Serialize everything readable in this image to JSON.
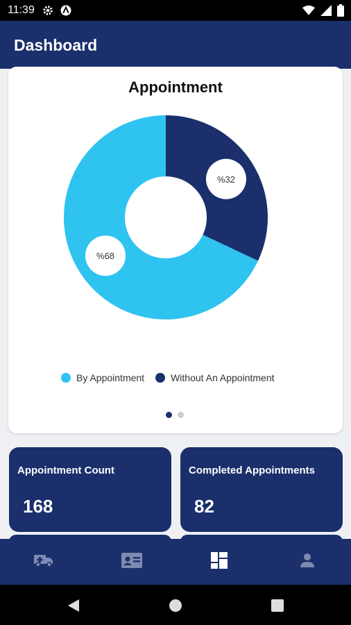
{
  "status_bar": {
    "time": "11:39",
    "icons_left": [
      "gear-icon",
      "a-circle-icon"
    ],
    "icons_right": [
      "wifi-icon",
      "signal-icon",
      "battery-icon"
    ]
  },
  "app_bar": {
    "title": "Dashboard"
  },
  "chart_card": {
    "title": "Appointment",
    "chart_data": {
      "type": "pie",
      "title": "Appointment",
      "categories": [
        "By Appointment",
        "Without An Appointment"
      ],
      "values": [
        68,
        32
      ],
      "labels": [
        "%68",
        "%32"
      ],
      "colors": [
        "#2fc3f0",
        "#1a2f6b"
      ],
      "legend_position": "bottom"
    },
    "pager": {
      "count": 2,
      "active": 0
    }
  },
  "stats": [
    {
      "label": "Appointment Count",
      "value": "168"
    },
    {
      "label": "Completed Appointments",
      "value": "82"
    }
  ],
  "bottom_nav": {
    "items": [
      "ambulance-icon",
      "id-card-icon",
      "dashboard-icon",
      "person-icon"
    ],
    "active": 2
  },
  "system_nav": [
    "back-icon",
    "home-icon",
    "recents-icon"
  ]
}
